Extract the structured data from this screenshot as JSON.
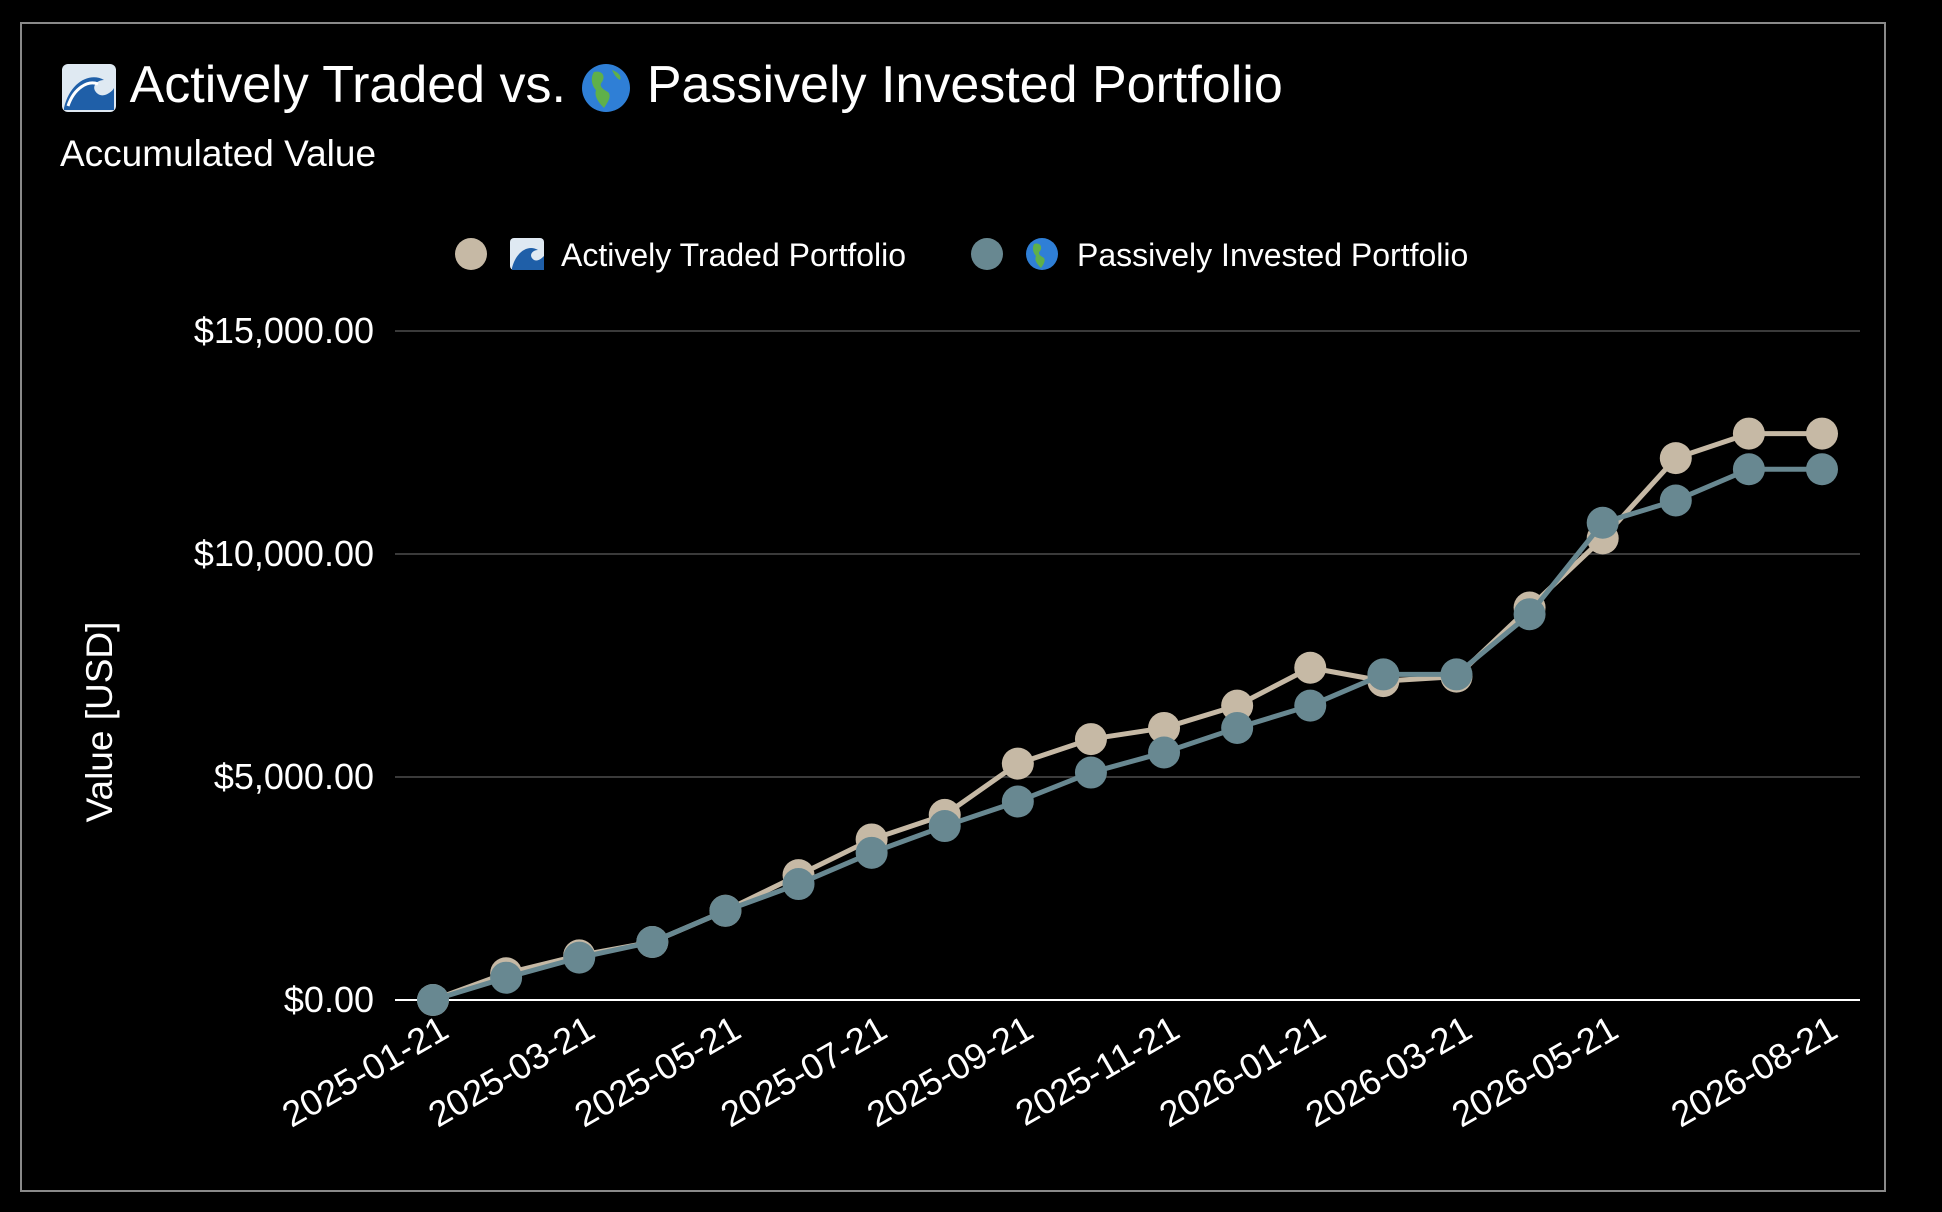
{
  "chart": {
    "title_left": "Actively Traded vs.",
    "title_right": "Passively Invested Portfolio",
    "subtitle": "Accumulated Value"
  },
  "icons": {
    "active": "wave-icon",
    "passive": "globe-americas-icon"
  },
  "colors": {
    "active": "#c6b9a5",
    "passive": "#688891",
    "grid": "#3a3a3a",
    "axis": "#ffffff",
    "background": "#000000"
  },
  "chart_data": {
    "type": "line",
    "title": "Actively Traded vs. Passively Invested Portfolio",
    "subtitle": "Accumulated Value",
    "xlabel": "",
    "ylabel": "Value [USD]",
    "x": [
      "2025-01-21",
      "2025-02-21",
      "2025-03-21",
      "2025-04-21",
      "2025-05-21",
      "2025-06-21",
      "2025-07-21",
      "2025-08-21",
      "2025-09-21",
      "2025-10-21",
      "2025-11-21",
      "2025-12-21",
      "2026-01-21",
      "2026-02-21",
      "2026-03-21",
      "2026-04-21",
      "2026-05-21",
      "2026-06-21",
      "2026-07-21",
      "2026-08-21"
    ],
    "x_tick_labels": [
      "2025-01-21",
      "2025-03-21",
      "2025-05-21",
      "2025-07-21",
      "2025-09-21",
      "2025-11-21",
      "2026-01-21",
      "2026-03-21",
      "2026-05-21",
      "2026-08-21"
    ],
    "y_tick_labels": [
      "$0.00",
      "$5,000.00",
      "$10,000.00",
      "$15,000.00"
    ],
    "y_ticks": [
      0,
      5000,
      10000,
      15000
    ],
    "ylim": [
      0,
      15000
    ],
    "grid": true,
    "legend_position": "top-center",
    "series": [
      {
        "name": "Actively Traded Portfolio",
        "icon": "wave-icon",
        "color": "#c6b9a5",
        "values": [
          0,
          600,
          1000,
          1300,
          2000,
          2800,
          3600,
          4150,
          5300,
          5850,
          6100,
          6600,
          7450,
          7150,
          7250,
          8800,
          10350,
          12150,
          12700,
          12700
        ]
      },
      {
        "name": "Passively Invested Portfolio",
        "icon": "globe-americas-icon",
        "color": "#688891",
        "values": [
          0,
          500,
          950,
          1300,
          2000,
          2600,
          3300,
          3900,
          4450,
          5100,
          5550,
          6100,
          6600,
          7300,
          7300,
          8650,
          10700,
          11200,
          11900,
          11900
        ]
      }
    ]
  }
}
